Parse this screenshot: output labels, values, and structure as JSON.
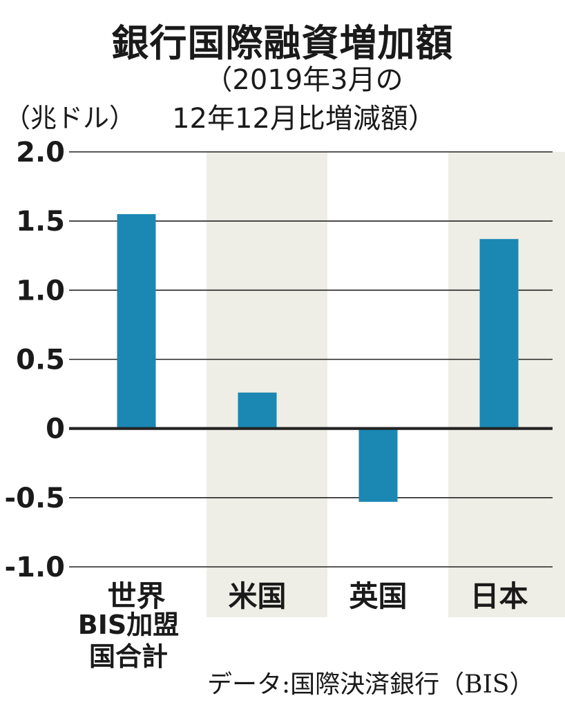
{
  "chart_data": {
    "type": "bar",
    "title": "銀行国際融資増加額",
    "subtitle_line1": "（2019年3月の",
    "subtitle_line2": "12年12月比増減額）",
    "ylabel": "（兆ドル）",
    "categories": [
      "世界",
      "米国",
      "英国",
      "日本"
    ],
    "category_note_line1": "BIS加盟",
    "category_note_line2": "国合計",
    "values": [
      1.55,
      0.26,
      -0.53,
      1.37
    ],
    "ylim": [
      -1.0,
      2.0
    ],
    "yticks": [
      2.0,
      1.5,
      1.0,
      0.5,
      0,
      -0.5,
      -1.0
    ],
    "ytick_labels": [
      "2.0",
      "1.5",
      "1.0",
      "0.5",
      "0",
      "-0.5",
      "-1.0"
    ],
    "bar_color": "#1b87b3",
    "band_color": "#eeeee6",
    "grid": true,
    "source": "データ:国際決済銀行（BIS）"
  }
}
